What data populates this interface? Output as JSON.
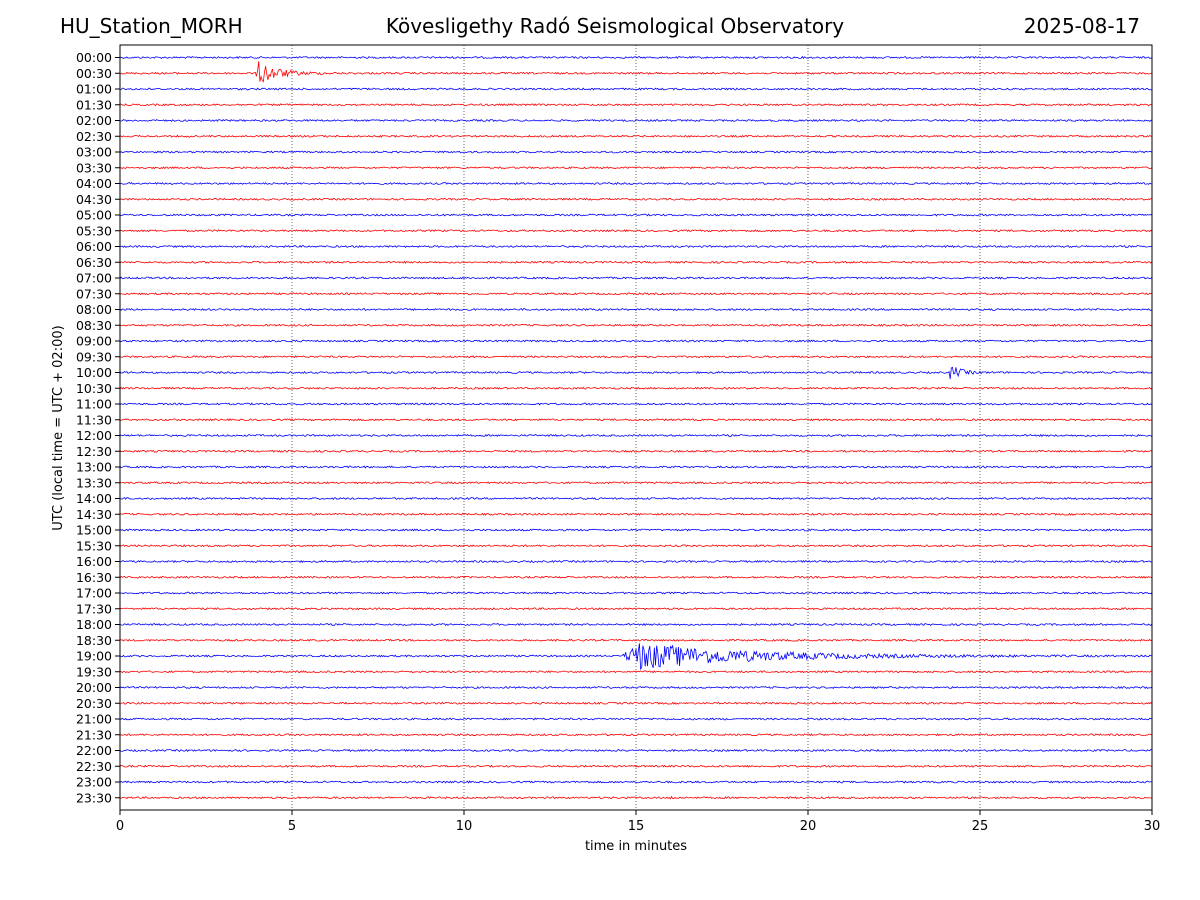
{
  "header": {
    "station": "HU_Station_MORH",
    "title": "Kövesligethy Radó Seismological Observatory",
    "date": "2025-08-17"
  },
  "chart_data": {
    "type": "line",
    "title": "Kövesligethy Radó Seismological Observatory",
    "xlabel": "time in minutes",
    "ylabel": "UTC (local time = UTC + 02:00)",
    "xlim": [
      0,
      30
    ],
    "x_ticks": [
      0,
      5,
      10,
      15,
      20,
      25,
      30
    ],
    "grid": "vertical dotted lines at x ticks",
    "row_labels": [
      "00:00",
      "00:30",
      "01:00",
      "01:30",
      "02:00",
      "02:30",
      "03:00",
      "03:30",
      "04:00",
      "04:30",
      "05:00",
      "05:30",
      "06:00",
      "06:30",
      "07:00",
      "07:30",
      "08:00",
      "08:30",
      "09:00",
      "09:30",
      "10:00",
      "10:30",
      "11:00",
      "11:30",
      "12:00",
      "12:30",
      "13:00",
      "13:30",
      "14:00",
      "14:30",
      "15:00",
      "15:30",
      "16:00",
      "16:30",
      "17:00",
      "17:30",
      "18:00",
      "18:30",
      "19:00",
      "19:30",
      "20:00",
      "20:30",
      "21:00",
      "21:30",
      "22:00",
      "22:30",
      "23:00",
      "23:30"
    ],
    "colors": {
      "even_rows": "#0000ff",
      "odd_rows": "#ff0000"
    },
    "events": [
      {
        "row": "00:30",
        "onset_min": 3.95,
        "duration_min": 1.7,
        "peak_amplitude": 14,
        "color": "#ff0000"
      },
      {
        "row": "10:00",
        "onset_min": 24.1,
        "duration_min": 0.9,
        "peak_amplitude": 9,
        "color": "#0000ff"
      },
      {
        "row": "19:00",
        "onset_min": 14.6,
        "duration_min": 9.5,
        "peak_amplitude": 16,
        "color": "#0000ff"
      },
      {
        "row": "23:30",
        "onset_min": 15.95,
        "duration_min": 0.25,
        "peak_amplitude": 2.5,
        "color": "#ff0000"
      }
    ]
  }
}
